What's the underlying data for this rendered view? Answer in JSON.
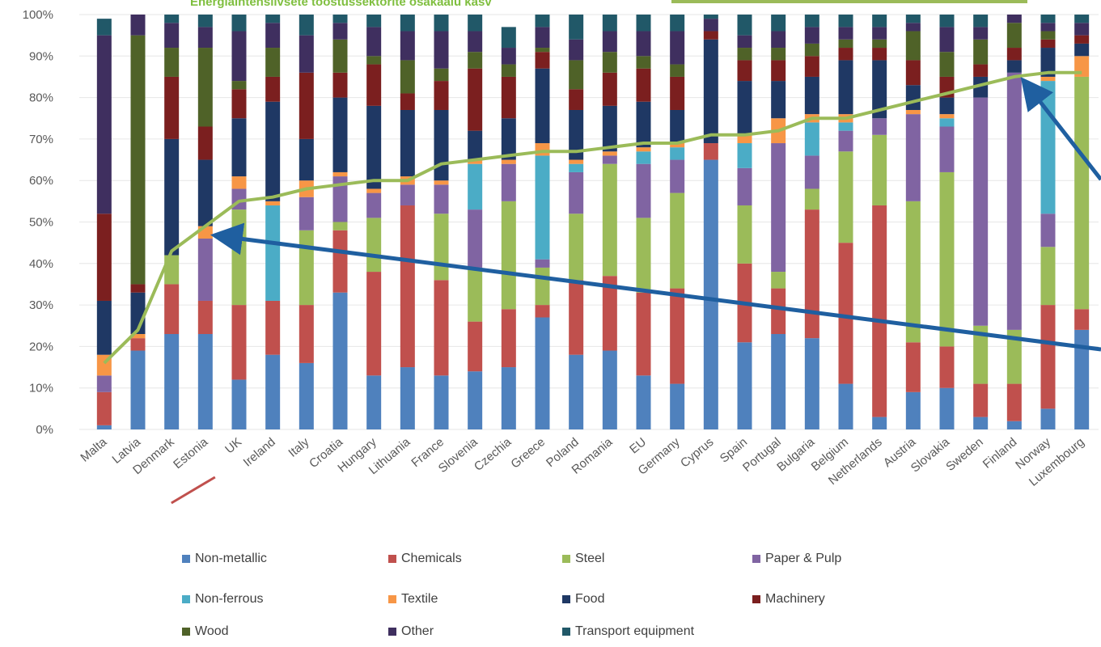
{
  "chart_data": {
    "type": "bar",
    "stacked": true,
    "banner": "Energiaintensiivsete tööstussektorite osakaalu kasv",
    "y_ticks": [
      "0%",
      "10%",
      "20%",
      "30%",
      "40%",
      "50%",
      "60%",
      "70%",
      "80%",
      "90%",
      "100%"
    ],
    "ylim": [
      0,
      100
    ],
    "categories": [
      "Malta",
      "Latvia",
      "Denmark",
      "Estonia",
      "UK",
      "Ireland",
      "Italy",
      "Croatia",
      "Hungary",
      "Lithuania",
      "France",
      "Slovenia",
      "Czechia",
      "Greece",
      "Poland",
      "Romania",
      "EU",
      "Germany",
      "Cyprus",
      "Spain",
      "Portugal",
      "Bulgaria",
      "Belgium",
      "Netherlands",
      "Austria",
      "Slovakia",
      "Sweden",
      "Finland",
      "Norway",
      "Luxembourg"
    ],
    "highlighted_category": "Estonia",
    "colors": {
      "Non-metallic": "#4f81bd",
      "Chemicals": "#c0504d",
      "Steel": "#9bbb59",
      "Paper & Pulp": "#8064a2",
      "Non-ferrous": "#4bacc6",
      "Textile": "#f79646",
      "Food": "#1f3864",
      "Machinery": "#7b1f1f",
      "Wood": "#4f6228",
      "Other": "#3f2f5f",
      "Transport equipment": "#215868",
      "line": "#9bbb59",
      "arrow": "#1f5fa0",
      "underline": "#c0504d"
    },
    "series": [
      {
        "name": "Non-metallic",
        "values": [
          1,
          19,
          23,
          23,
          12,
          18,
          16,
          33,
          13,
          15,
          13,
          14,
          15,
          27,
          18,
          19,
          13,
          11,
          65,
          21,
          23,
          22,
          11,
          3,
          9,
          10,
          3,
          2,
          5,
          24
        ]
      },
      {
        "name": "Chemicals",
        "values": [
          8,
          3,
          12,
          8,
          18,
          13,
          14,
          15,
          25,
          39,
          23,
          12,
          14,
          3,
          18,
          18,
          20,
          23,
          4,
          19,
          11,
          31,
          34,
          51,
          12,
          10,
          8,
          9,
          25,
          5
        ]
      },
      {
        "name": "Steel",
        "values": [
          0,
          0,
          7,
          0,
          23,
          0,
          18,
          2,
          13,
          0,
          16,
          13,
          26,
          9,
          16,
          27,
          18,
          23,
          0,
          14,
          4,
          5,
          22,
          17,
          34,
          42,
          14,
          13,
          14,
          56
        ]
      },
      {
        "name": "Paper & Pulp",
        "values": [
          4,
          0,
          0,
          15,
          5,
          0,
          8,
          11,
          6,
          5,
          7,
          14,
          9,
          2,
          10,
          2,
          13,
          8,
          0,
          9,
          31,
          8,
          5,
          4,
          21,
          11,
          55,
          62,
          8,
          0
        ]
      },
      {
        "name": "Non-ferrous",
        "values": [
          0,
          0,
          0,
          0,
          0,
          23,
          0,
          0,
          0,
          0,
          0,
          11,
          0,
          25,
          2,
          0,
          3,
          3,
          0,
          6,
          0,
          8,
          2,
          0,
          0,
          2,
          0,
          0,
          32,
          0
        ]
      },
      {
        "name": "Textile",
        "values": [
          5,
          1,
          0,
          3,
          3,
          1,
          4,
          1,
          1,
          2,
          1,
          1,
          1,
          3,
          1,
          1,
          1,
          1,
          0,
          2,
          6,
          2,
          2,
          0,
          1,
          1,
          0,
          0,
          1,
          5
        ]
      },
      {
        "name": "Food",
        "values": [
          13,
          10,
          28,
          16,
          14,
          24,
          10,
          18,
          20,
          16,
          17,
          7,
          10,
          18,
          12,
          11,
          11,
          8,
          25,
          13,
          9,
          9,
          13,
          14,
          6,
          4,
          5,
          3,
          7,
          3
        ]
      },
      {
        "name": "Machinery",
        "values": [
          21,
          2,
          15,
          8,
          7,
          6,
          16,
          6,
          10,
          4,
          7,
          15,
          10,
          4,
          5,
          8,
          8,
          8,
          2,
          5,
          5,
          5,
          3,
          3,
          6,
          5,
          3,
          3,
          2,
          2
        ]
      },
      {
        "name": "Wood",
        "values": [
          0,
          60,
          7,
          19,
          2,
          7,
          0,
          8,
          2,
          8,
          3,
          4,
          3,
          1,
          7,
          5,
          3,
          3,
          0,
          3,
          3,
          3,
          2,
          2,
          7,
          6,
          6,
          6,
          2,
          0
        ]
      },
      {
        "name": "Other",
        "values": [
          43,
          5,
          6,
          5,
          12,
          6,
          9,
          4,
          7,
          7,
          9,
          5,
          4,
          5,
          5,
          5,
          6,
          8,
          3,
          3,
          4,
          4,
          3,
          3,
          2,
          6,
          3,
          2,
          2,
          3
        ]
      },
      {
        "name": "Transport equipment",
        "values": [
          4,
          0,
          2,
          3,
          4,
          2,
          5,
          2,
          3,
          4,
          4,
          4,
          5,
          3,
          6,
          4,
          4,
          4,
          1,
          5,
          4,
          3,
          3,
          3,
          2,
          3,
          3,
          0,
          2,
          2
        ]
      }
    ],
    "cumulative_line": [
      16,
      24,
      43,
      49,
      55,
      56,
      58,
      59,
      60,
      60,
      64,
      65,
      66,
      67,
      67,
      68,
      69,
      69,
      71,
      71,
      72,
      75,
      75,
      77,
      79,
      81,
      83,
      85,
      86,
      86
    ],
    "legend": [
      "Non-metallic",
      "Chemicals",
      "Steel",
      "Paper & Pulp",
      "Non-ferrous",
      "Textile",
      "Food",
      "Machinery",
      "Wood",
      "Other",
      "Transport equipment"
    ],
    "legend_placement": "bottom"
  }
}
